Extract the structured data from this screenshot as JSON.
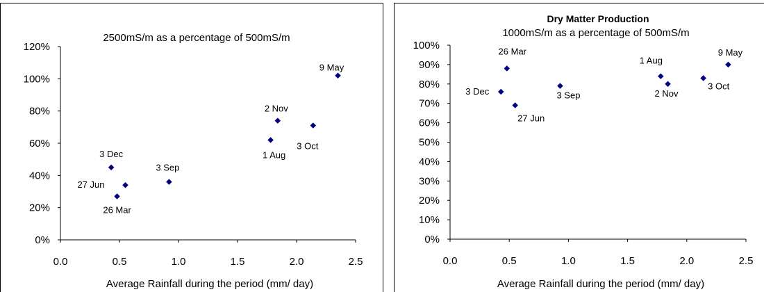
{
  "chart_data": [
    {
      "type": "scatter",
      "title": "",
      "subtitle": "2500mS/m  as a percentage of 500mS/m",
      "xlabel": "Average Rainfall during the period (mm/ day)",
      "ylabel": "",
      "xlim": [
        0.0,
        2.5
      ],
      "ylim": [
        0.0,
        1.2
      ],
      "xticks": [
        "0.0",
        "0.5",
        "1.0",
        "1.5",
        "2.0",
        "2.5"
      ],
      "yticks": [
        "0%",
        "20%",
        "40%",
        "60%",
        "80%",
        "100%",
        "120%"
      ],
      "series": [
        {
          "marker_color": "#000080",
          "points": [
            {
              "label": "3 Dec",
              "x": 0.43,
              "y": 0.45
            },
            {
              "label": "27 Jun",
              "x": 0.55,
              "y": 0.34
            },
            {
              "label": "26 Mar",
              "x": 0.48,
              "y": 0.27
            },
            {
              "label": "3 Sep",
              "x": 0.92,
              "y": 0.36
            },
            {
              "label": "1 Aug",
              "x": 1.78,
              "y": 0.62
            },
            {
              "label": "2 Nov",
              "x": 1.84,
              "y": 0.74
            },
            {
              "label": "3 Oct",
              "x": 2.14,
              "y": 0.71
            },
            {
              "label": "9 May",
              "x": 2.35,
              "y": 1.02
            }
          ]
        }
      ]
    },
    {
      "type": "scatter",
      "title": "Dry Matter Production",
      "subtitle": "1000mS/m as  a percentage of 500mS/m",
      "xlabel": "Average Rainfall during the period (mm/  day)",
      "ylabel": "",
      "xlim": [
        0.0,
        2.5
      ],
      "ylim": [
        0.0,
        1.0
      ],
      "xticks": [
        "0.0",
        "0.5",
        "1.0",
        "1.5",
        "2.0",
        "2.5"
      ],
      "yticks": [
        "0%",
        "10%",
        "20%",
        "30%",
        "40%",
        "50%",
        "60%",
        "70%",
        "80%",
        "90%",
        "100%"
      ],
      "series": [
        {
          "marker_color": "#000080",
          "points": [
            {
              "label": "3 Dec",
              "x": 0.43,
              "y": 0.76
            },
            {
              "label": "26 Mar",
              "x": 0.48,
              "y": 0.88
            },
            {
              "label": "27 Jun",
              "x": 0.55,
              "y": 0.69
            },
            {
              "label": "3 Sep",
              "x": 0.93,
              "y": 0.79
            },
            {
              "label": "1 Aug",
              "x": 1.78,
              "y": 0.84
            },
            {
              "label": "2 Nov",
              "x": 1.84,
              "y": 0.8
            },
            {
              "label": "3 Oct",
              "x": 2.14,
              "y": 0.83
            },
            {
              "label": "9 May",
              "x": 2.35,
              "y": 0.9
            }
          ]
        }
      ]
    }
  ]
}
